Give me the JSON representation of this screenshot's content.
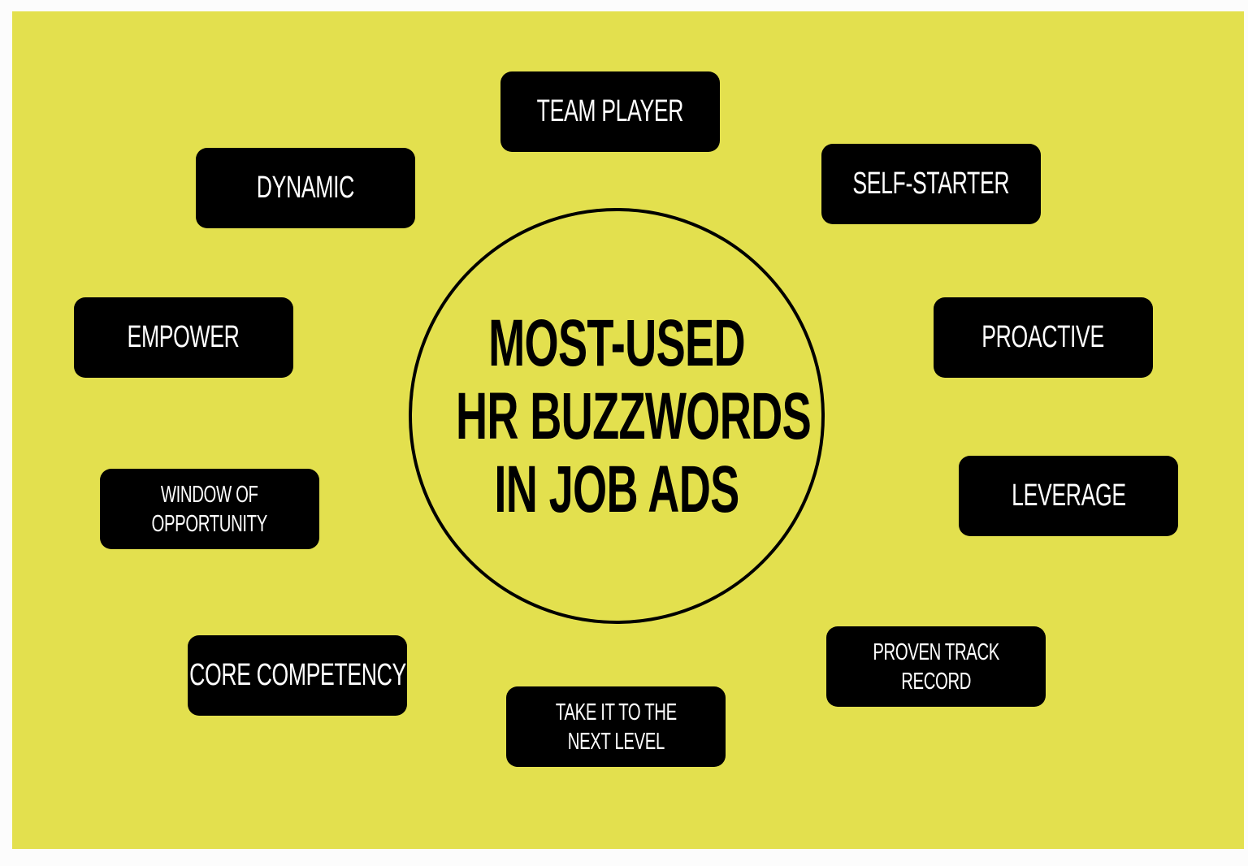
{
  "colors": {
    "background": "#e3e04e",
    "box": "#000000",
    "box_text": "#ffffff"
  },
  "title": {
    "lines": [
      "MOST-USED",
      "HR BUZZWORDS",
      "IN JOB ADS"
    ]
  },
  "buzzwords": [
    {
      "label": "TEAM PLAYER"
    },
    {
      "label": "DYNAMIC"
    },
    {
      "label": "SELF-STARTER"
    },
    {
      "label": "EMPOWER"
    },
    {
      "label": "PROACTIVE"
    },
    {
      "label": "WINDOW OF\nOPPORTUNITY"
    },
    {
      "label": "LEVERAGE"
    },
    {
      "label": "CORE COMPETENCY"
    },
    {
      "label": "TAKE IT TO THE\nNEXT LEVEL"
    },
    {
      "label": "PROVEN TRACK\nRECORD"
    }
  ]
}
